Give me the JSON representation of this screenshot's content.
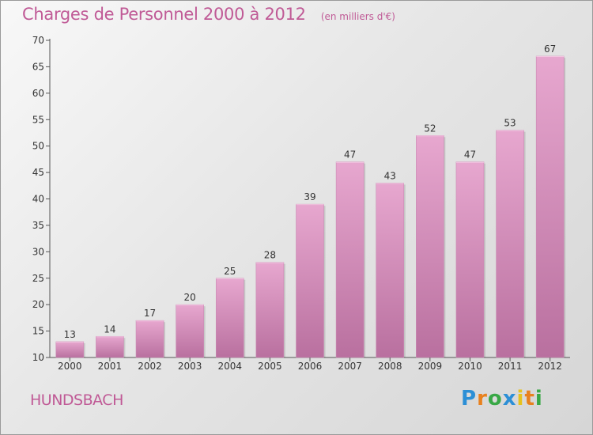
{
  "header": {
    "title": "Charges de Personnel 2000 à 2012",
    "subtitle": "(en milliers d'€)"
  },
  "footer": {
    "location": "HUNDSBACH",
    "logo_text": "Proxiti",
    "logo_colors": [
      "#2c8fd6",
      "#e8811e",
      "#39a846",
      "#2c8fd6",
      "#e6c21c",
      "#e8811e",
      "#39a846"
    ]
  },
  "colors": {
    "bar_top": "#e7a7cf",
    "bar_bottom": "#b9709f",
    "title": "#c05a96",
    "axis_text": "#333333"
  },
  "chart_data": {
    "type": "bar",
    "categories": [
      "2000",
      "2001",
      "2002",
      "2003",
      "2004",
      "2005",
      "2006",
      "2007",
      "2008",
      "2009",
      "2010",
      "2011",
      "2012"
    ],
    "values": [
      13,
      14,
      17,
      20,
      25,
      28,
      39,
      47,
      43,
      52,
      47,
      53,
      67
    ],
    "ylim": [
      10,
      70
    ],
    "yticks": [
      10,
      15,
      20,
      25,
      30,
      35,
      40,
      45,
      50,
      55,
      60,
      65,
      70
    ],
    "grid": false,
    "data_labels": true
  }
}
